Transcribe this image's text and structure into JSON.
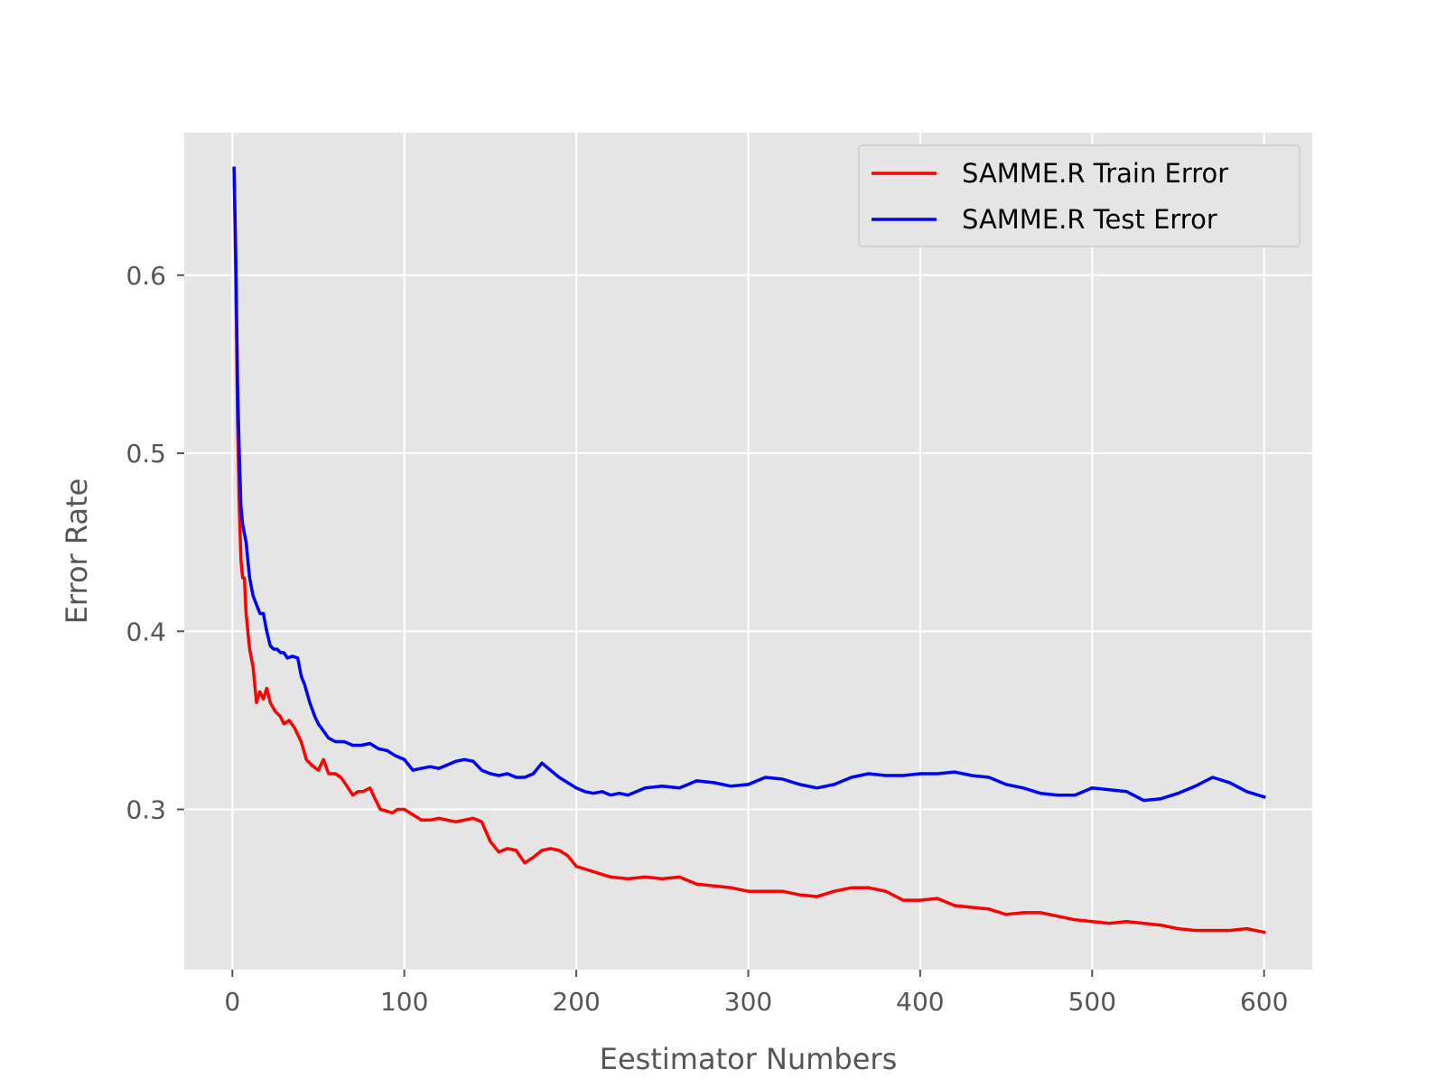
{
  "chart_data": {
    "type": "line",
    "xlabel": "Eestimator Numbers",
    "ylabel": "Error Rate",
    "xlim": [
      -28,
      628
    ],
    "ylim": [
      0.21,
      0.68
    ],
    "xticks": [
      0,
      100,
      200,
      300,
      400,
      500,
      600
    ],
    "xtick_labels": [
      "0",
      "100",
      "200",
      "300",
      "400",
      "500",
      "600"
    ],
    "yticks": [
      0.3,
      0.4,
      0.5,
      0.6
    ],
    "ytick_labels": [
      "0.3",
      "0.4",
      "0.5",
      "0.6"
    ],
    "grid": true,
    "legend_position": "top-right",
    "background": "#e5e5e5",
    "series": [
      {
        "name": "SAMME.R Train Error",
        "color": "#ff0000",
        "x": [
          1,
          2,
          3,
          4,
          5,
          6,
          7,
          8,
          9,
          10,
          12,
          14,
          16,
          18,
          20,
          22,
          25,
          28,
          30,
          33,
          36,
          40,
          43,
          46,
          50,
          53,
          56,
          60,
          63,
          66,
          70,
          73,
          76,
          80,
          83,
          86,
          90,
          93,
          96,
          100,
          105,
          110,
          115,
          120,
          125,
          130,
          135,
          140,
          145,
          150,
          155,
          160,
          165,
          170,
          175,
          180,
          185,
          190,
          195,
          200,
          210,
          220,
          230,
          240,
          250,
          260,
          270,
          280,
          290,
          300,
          310,
          320,
          330,
          340,
          350,
          360,
          370,
          380,
          390,
          400,
          410,
          420,
          430,
          440,
          450,
          460,
          470,
          480,
          490,
          500,
          510,
          520,
          530,
          540,
          550,
          560,
          570,
          580,
          590,
          600
        ],
        "values": [
          0.66,
          0.6,
          0.52,
          0.47,
          0.44,
          0.43,
          0.43,
          0.41,
          0.4,
          0.39,
          0.38,
          0.36,
          0.366,
          0.362,
          0.368,
          0.36,
          0.355,
          0.352,
          0.348,
          0.35,
          0.346,
          0.338,
          0.328,
          0.325,
          0.322,
          0.328,
          0.32,
          0.32,
          0.318,
          0.314,
          0.308,
          0.31,
          0.31,
          0.312,
          0.306,
          0.3,
          0.299,
          0.298,
          0.3,
          0.3,
          0.297,
          0.294,
          0.294,
          0.295,
          0.294,
          0.293,
          0.294,
          0.295,
          0.293,
          0.282,
          0.276,
          0.278,
          0.277,
          0.27,
          0.273,
          0.277,
          0.278,
          0.277,
          0.274,
          0.268,
          0.265,
          0.262,
          0.261,
          0.262,
          0.261,
          0.262,
          0.258,
          0.257,
          0.256,
          0.254,
          0.254,
          0.254,
          0.252,
          0.251,
          0.254,
          0.256,
          0.256,
          0.254,
          0.249,
          0.249,
          0.25,
          0.246,
          0.245,
          0.244,
          0.241,
          0.242,
          0.242,
          0.24,
          0.238,
          0.237,
          0.236,
          0.237,
          0.236,
          0.235,
          0.233,
          0.232,
          0.232,
          0.232,
          0.233,
          0.231
        ]
      },
      {
        "name": "SAMME.R Test Error",
        "color": "#0000ff",
        "x": [
          1,
          2,
          3,
          4,
          5,
          6,
          7,
          8,
          9,
          10,
          12,
          14,
          16,
          18,
          20,
          22,
          24,
          26,
          28,
          30,
          32,
          35,
          38,
          40,
          42,
          45,
          48,
          50,
          53,
          56,
          60,
          65,
          70,
          75,
          80,
          85,
          90,
          95,
          100,
          105,
          110,
          115,
          120,
          125,
          130,
          135,
          140,
          145,
          150,
          155,
          160,
          165,
          170,
          175,
          180,
          185,
          190,
          195,
          200,
          205,
          210,
          215,
          220,
          225,
          230,
          240,
          250,
          260,
          270,
          280,
          290,
          300,
          310,
          320,
          330,
          340,
          350,
          360,
          370,
          380,
          390,
          400,
          410,
          420,
          430,
          440,
          450,
          460,
          470,
          480,
          490,
          500,
          510,
          520,
          530,
          540,
          550,
          560,
          570,
          580,
          590,
          600
        ],
        "values": [
          0.66,
          0.61,
          0.54,
          0.5,
          0.47,
          0.46,
          0.455,
          0.45,
          0.44,
          0.43,
          0.42,
          0.415,
          0.41,
          0.41,
          0.4,
          0.392,
          0.39,
          0.39,
          0.388,
          0.388,
          0.385,
          0.386,
          0.385,
          0.375,
          0.37,
          0.36,
          0.352,
          0.348,
          0.344,
          0.34,
          0.338,
          0.338,
          0.336,
          0.336,
          0.337,
          0.334,
          0.333,
          0.33,
          0.328,
          0.322,
          0.323,
          0.324,
          0.323,
          0.325,
          0.327,
          0.328,
          0.327,
          0.322,
          0.32,
          0.319,
          0.32,
          0.318,
          0.318,
          0.32,
          0.326,
          0.322,
          0.318,
          0.315,
          0.312,
          0.31,
          0.309,
          0.31,
          0.308,
          0.309,
          0.308,
          0.312,
          0.313,
          0.312,
          0.316,
          0.315,
          0.313,
          0.314,
          0.318,
          0.317,
          0.314,
          0.312,
          0.314,
          0.318,
          0.32,
          0.319,
          0.319,
          0.32,
          0.32,
          0.321,
          0.319,
          0.318,
          0.314,
          0.312,
          0.309,
          0.308,
          0.308,
          0.312,
          0.311,
          0.31,
          0.305,
          0.306,
          0.309,
          0.313,
          0.318,
          0.315,
          0.31,
          0.307
        ]
      }
    ]
  }
}
